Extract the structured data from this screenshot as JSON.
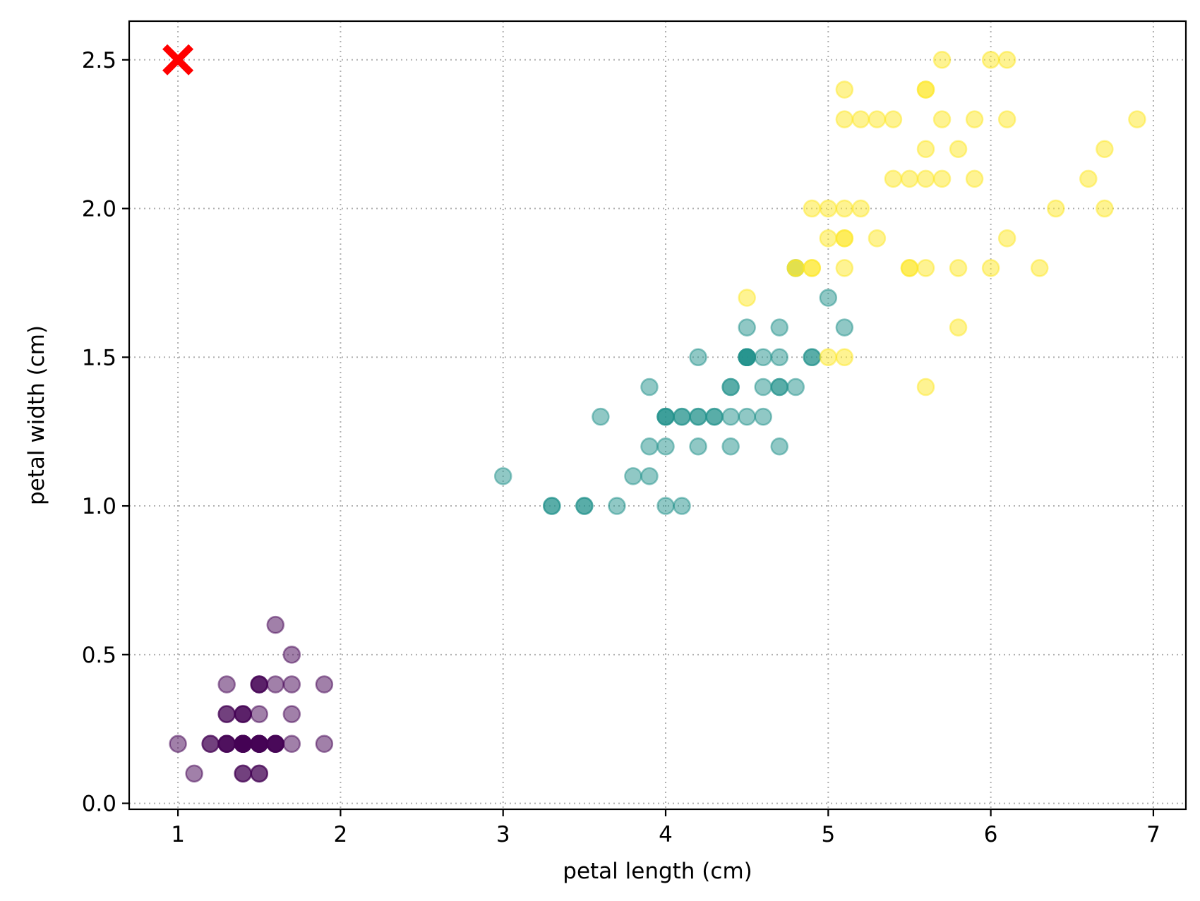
{
  "chart_data": {
    "type": "scatter",
    "title": "",
    "xlabel": "petal length (cm)",
    "ylabel": "petal width (cm)",
    "xlim": [
      0.7,
      7.2
    ],
    "ylim": [
      -0.02,
      2.63
    ],
    "x_ticks": [
      1,
      2,
      3,
      4,
      5,
      6,
      7
    ],
    "y_ticks": [
      0.0,
      0.5,
      1.0,
      1.5,
      2.0,
      2.5
    ],
    "x_tick_labels": [
      "1",
      "2",
      "3",
      "4",
      "5",
      "6",
      "7"
    ],
    "y_tick_labels": [
      "0.0",
      "0.5",
      "1.0",
      "1.5",
      "2.0",
      "2.5"
    ],
    "grid": true,
    "grid_style": "dotted",
    "legend": "none",
    "point_opacity": 0.5,
    "series": [
      {
        "color": "#440154",
        "points": [
          [
            1.4,
            0.2
          ],
          [
            1.4,
            0.2
          ],
          [
            1.3,
            0.2
          ],
          [
            1.5,
            0.2
          ],
          [
            1.4,
            0.2
          ],
          [
            1.7,
            0.4
          ],
          [
            1.4,
            0.3
          ],
          [
            1.5,
            0.2
          ],
          [
            1.4,
            0.2
          ],
          [
            1.5,
            0.1
          ],
          [
            1.5,
            0.2
          ],
          [
            1.6,
            0.2
          ],
          [
            1.4,
            0.1
          ],
          [
            1.1,
            0.1
          ],
          [
            1.2,
            0.2
          ],
          [
            1.5,
            0.4
          ],
          [
            1.3,
            0.4
          ],
          [
            1.4,
            0.3
          ],
          [
            1.7,
            0.3
          ],
          [
            1.5,
            0.3
          ],
          [
            1.7,
            0.2
          ],
          [
            1.5,
            0.4
          ],
          [
            1.0,
            0.2
          ],
          [
            1.7,
            0.5
          ],
          [
            1.9,
            0.2
          ],
          [
            1.6,
            0.2
          ],
          [
            1.6,
            0.4
          ],
          [
            1.5,
            0.2
          ],
          [
            1.4,
            0.2
          ],
          [
            1.6,
            0.2
          ],
          [
            1.6,
            0.2
          ],
          [
            1.5,
            0.4
          ],
          [
            1.5,
            0.1
          ],
          [
            1.4,
            0.2
          ],
          [
            1.5,
            0.2
          ],
          [
            1.2,
            0.2
          ],
          [
            1.3,
            0.2
          ],
          [
            1.4,
            0.1
          ],
          [
            1.3,
            0.2
          ],
          [
            1.5,
            0.2
          ],
          [
            1.3,
            0.3
          ],
          [
            1.3,
            0.3
          ],
          [
            1.3,
            0.2
          ],
          [
            1.6,
            0.6
          ],
          [
            1.9,
            0.4
          ],
          [
            1.4,
            0.3
          ],
          [
            1.6,
            0.2
          ],
          [
            1.4,
            0.2
          ],
          [
            1.5,
            0.2
          ],
          [
            1.4,
            0.2
          ]
        ]
      },
      {
        "color": "#21918c",
        "points": [
          [
            4.7,
            1.4
          ],
          [
            4.5,
            1.5
          ],
          [
            4.9,
            1.5
          ],
          [
            4.0,
            1.3
          ],
          [
            4.6,
            1.5
          ],
          [
            4.5,
            1.3
          ],
          [
            4.7,
            1.6
          ],
          [
            3.3,
            1.0
          ],
          [
            4.6,
            1.3
          ],
          [
            3.9,
            1.4
          ],
          [
            3.5,
            1.0
          ],
          [
            4.2,
            1.5
          ],
          [
            4.0,
            1.0
          ],
          [
            4.7,
            1.4
          ],
          [
            3.6,
            1.3
          ],
          [
            4.4,
            1.4
          ],
          [
            4.5,
            1.5
          ],
          [
            4.1,
            1.0
          ],
          [
            4.5,
            1.5
          ],
          [
            3.9,
            1.1
          ],
          [
            4.8,
            1.8
          ],
          [
            4.0,
            1.3
          ],
          [
            4.9,
            1.5
          ],
          [
            4.7,
            1.2
          ],
          [
            4.3,
            1.3
          ],
          [
            4.4,
            1.4
          ],
          [
            4.8,
            1.4
          ],
          [
            5.0,
            1.7
          ],
          [
            4.5,
            1.5
          ],
          [
            3.5,
            1.0
          ],
          [
            3.8,
            1.1
          ],
          [
            3.7,
            1.0
          ],
          [
            3.9,
            1.2
          ],
          [
            5.1,
            1.6
          ],
          [
            4.5,
            1.5
          ],
          [
            4.5,
            1.6
          ],
          [
            4.7,
            1.5
          ],
          [
            4.4,
            1.3
          ],
          [
            4.1,
            1.3
          ],
          [
            4.0,
            1.3
          ],
          [
            4.4,
            1.2
          ],
          [
            4.6,
            1.4
          ],
          [
            4.0,
            1.2
          ],
          [
            3.3,
            1.0
          ],
          [
            4.2,
            1.3
          ],
          [
            4.2,
            1.2
          ],
          [
            4.2,
            1.3
          ],
          [
            4.3,
            1.3
          ],
          [
            3.0,
            1.1
          ],
          [
            4.1,
            1.3
          ]
        ]
      },
      {
        "color": "#fde725",
        "points": [
          [
            6.0,
            2.5
          ],
          [
            5.1,
            1.9
          ],
          [
            5.9,
            2.1
          ],
          [
            5.6,
            1.8
          ],
          [
            5.8,
            2.2
          ],
          [
            6.6,
            2.1
          ],
          [
            4.5,
            1.7
          ],
          [
            6.3,
            1.8
          ],
          [
            5.8,
            1.8
          ],
          [
            6.1,
            2.5
          ],
          [
            5.1,
            2.0
          ],
          [
            5.3,
            1.9
          ],
          [
            5.5,
            2.1
          ],
          [
            5.0,
            2.0
          ],
          [
            5.1,
            2.4
          ],
          [
            5.3,
            2.3
          ],
          [
            5.5,
            1.8
          ],
          [
            6.7,
            2.2
          ],
          [
            6.9,
            2.3
          ],
          [
            5.0,
            1.5
          ],
          [
            5.7,
            2.3
          ],
          [
            4.9,
            2.0
          ],
          [
            6.7,
            2.0
          ],
          [
            4.9,
            1.8
          ],
          [
            5.7,
            2.1
          ],
          [
            6.0,
            1.8
          ],
          [
            4.8,
            1.8
          ],
          [
            4.9,
            1.8
          ],
          [
            5.6,
            2.1
          ],
          [
            5.8,
            1.6
          ],
          [
            6.1,
            1.9
          ],
          [
            6.4,
            2.0
          ],
          [
            5.6,
            2.2
          ],
          [
            5.1,
            1.5
          ],
          [
            5.6,
            1.4
          ],
          [
            6.1,
            2.3
          ],
          [
            5.6,
            2.4
          ],
          [
            5.5,
            1.8
          ],
          [
            4.8,
            1.8
          ],
          [
            5.4,
            2.1
          ],
          [
            5.6,
            2.4
          ],
          [
            5.1,
            2.3
          ],
          [
            5.1,
            1.9
          ],
          [
            5.9,
            2.3
          ],
          [
            5.7,
            2.5
          ],
          [
            5.2,
            2.3
          ],
          [
            5.0,
            1.9
          ],
          [
            5.2,
            2.0
          ],
          [
            5.4,
            2.3
          ],
          [
            5.1,
            1.8
          ]
        ]
      }
    ],
    "highlight": {
      "x": 1.0,
      "y": 2.5,
      "marker": "X",
      "color": "#ff0000"
    }
  }
}
